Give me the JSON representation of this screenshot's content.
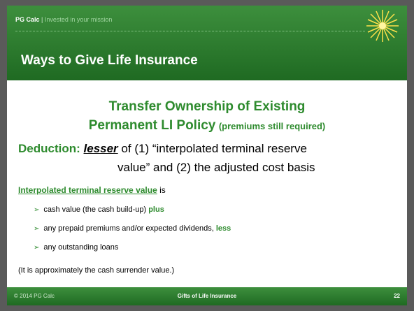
{
  "header": {
    "brand": "PG Calc",
    "separator": "|",
    "tagline": "Invested in your mission",
    "title": "Ways to Give Life Insurance"
  },
  "body": {
    "heading": {
      "line1": "Transfer Ownership of Existing",
      "line2": "Permanent LI Policy",
      "line2_note": "(premiums still required)"
    },
    "deduction": {
      "label": "Deduction:",
      "emphasis": "lesser",
      "text1": "of (1) “interpolated terminal reserve",
      "text2": "value” and (2) the adjusted cost basis"
    },
    "definition": {
      "term": "Interpolated terminal reserve value",
      "text": "is"
    },
    "bullets": [
      {
        "text": "cash value (the cash build-up)",
        "emphasis": "plus"
      },
      {
        "text": "any prepaid premiums and/or expected dividends,",
        "emphasis": "less"
      },
      {
        "text": "any outstanding loans"
      }
    ],
    "note": "(It is approximately the cash surrender value.)"
  },
  "footer": {
    "copyright": "© 2014 PG Calc",
    "title": "Gifts of Life Insurance",
    "page": "22"
  }
}
